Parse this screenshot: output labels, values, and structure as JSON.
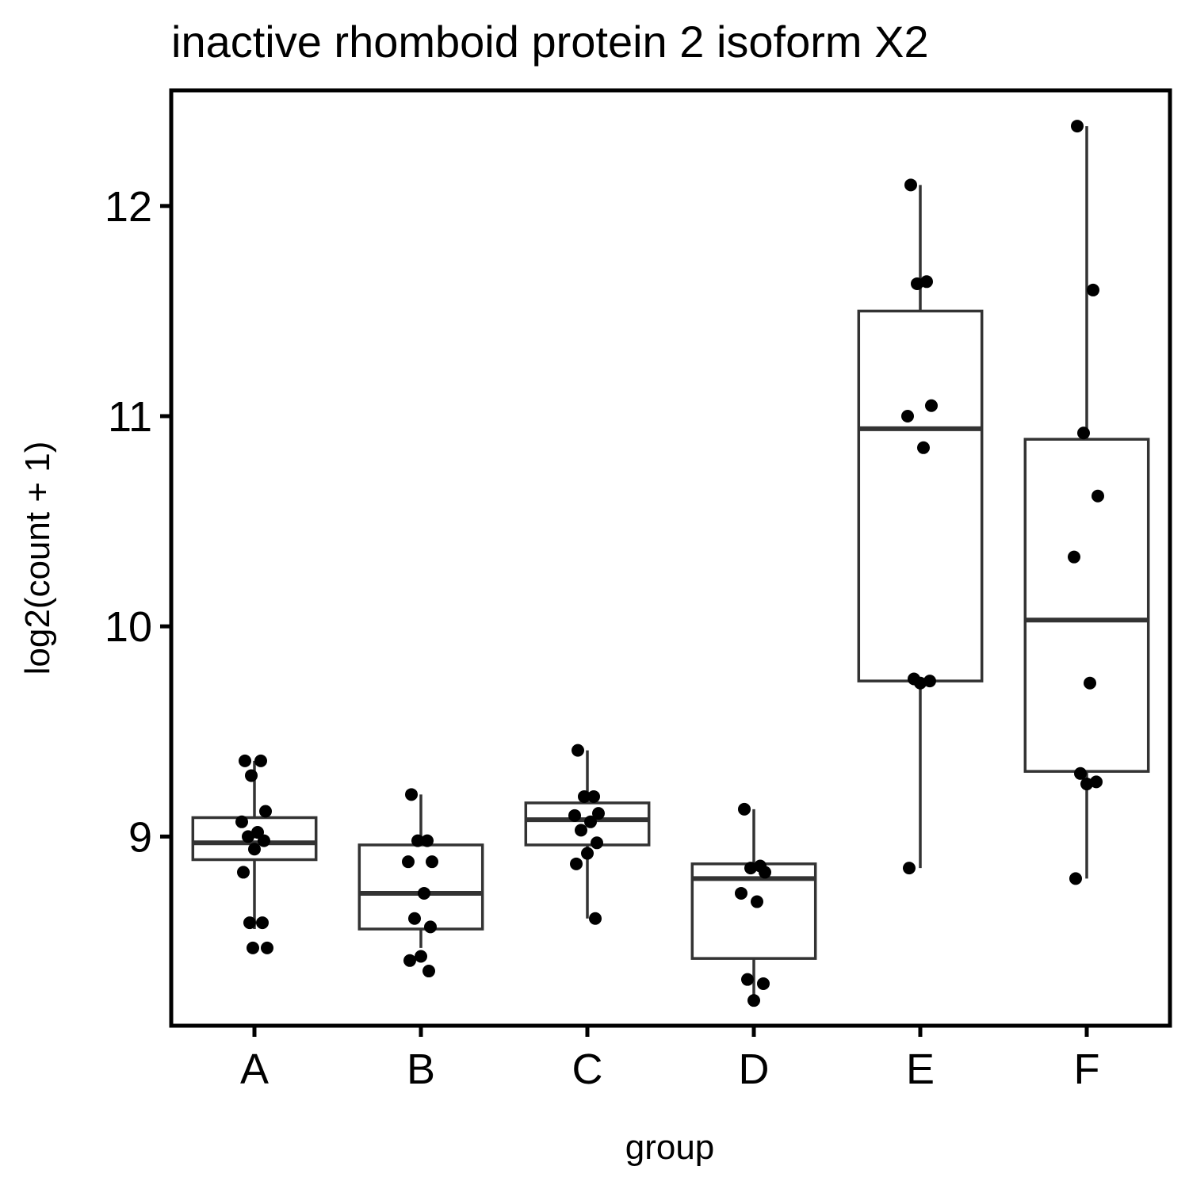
{
  "chart_data": {
    "type": "box",
    "title": "inactive rhomboid protein 2 isoform X2",
    "xlabel": "group",
    "ylabel": "log2(count + 1)",
    "ylim": [
      8.1,
      12.55
    ],
    "yticks": [
      9,
      10,
      11,
      12
    ],
    "grid": false,
    "legend": "none",
    "colors": {
      "box_stroke": "#333333",
      "point": "#000000",
      "panel_border": "#000000"
    },
    "categories": [
      "A",
      "B",
      "C",
      "D",
      "E",
      "F"
    ],
    "boxes": [
      {
        "group": "A",
        "whisker_low": 8.56,
        "q1": 8.89,
        "median": 8.97,
        "q3": 9.09,
        "whisker_high": 9.36
      },
      {
        "group": "B",
        "whisker_low": 8.47,
        "q1": 8.56,
        "median": 8.73,
        "q3": 8.96,
        "whisker_high": 9.2
      },
      {
        "group": "C",
        "whisker_low": 8.61,
        "q1": 8.96,
        "median": 9.08,
        "q3": 9.16,
        "whisker_high": 9.41
      },
      {
        "group": "D",
        "whisker_low": 8.22,
        "q1": 8.42,
        "median": 8.8,
        "q3": 8.87,
        "whisker_high": 9.13
      },
      {
        "group": "E",
        "whisker_low": 8.85,
        "q1": 9.74,
        "median": 10.94,
        "q3": 11.5,
        "whisker_high": 12.1
      },
      {
        "group": "F",
        "whisker_low": 8.8,
        "q1": 9.31,
        "median": 10.03,
        "q3": 10.89,
        "whisker_high": 12.38
      }
    ],
    "points": [
      {
        "group": "A",
        "values": [
          9.36,
          9.36,
          9.29,
          9.12,
          9.07,
          9.02,
          9.0,
          8.98,
          8.94,
          8.83,
          8.59,
          8.59,
          8.47,
          8.47
        ]
      },
      {
        "group": "B",
        "values": [
          9.2,
          8.98,
          8.98,
          8.88,
          8.88,
          8.73,
          8.61,
          8.57,
          8.43,
          8.41,
          8.36
        ]
      },
      {
        "group": "C",
        "values": [
          9.41,
          9.19,
          9.19,
          9.11,
          9.1,
          9.07,
          9.03,
          8.97,
          8.92,
          8.87,
          8.61
        ]
      },
      {
        "group": "D",
        "values": [
          9.13,
          8.86,
          8.85,
          8.83,
          8.73,
          8.69,
          8.32,
          8.3,
          8.22
        ]
      },
      {
        "group": "E",
        "values": [
          12.1,
          11.64,
          11.63,
          11.05,
          11.0,
          10.85,
          9.75,
          9.74,
          9.73,
          8.85
        ]
      },
      {
        "group": "F",
        "values": [
          12.38,
          11.6,
          10.92,
          10.62,
          10.33,
          9.73,
          9.3,
          9.26,
          9.25,
          8.8
        ]
      }
    ]
  }
}
